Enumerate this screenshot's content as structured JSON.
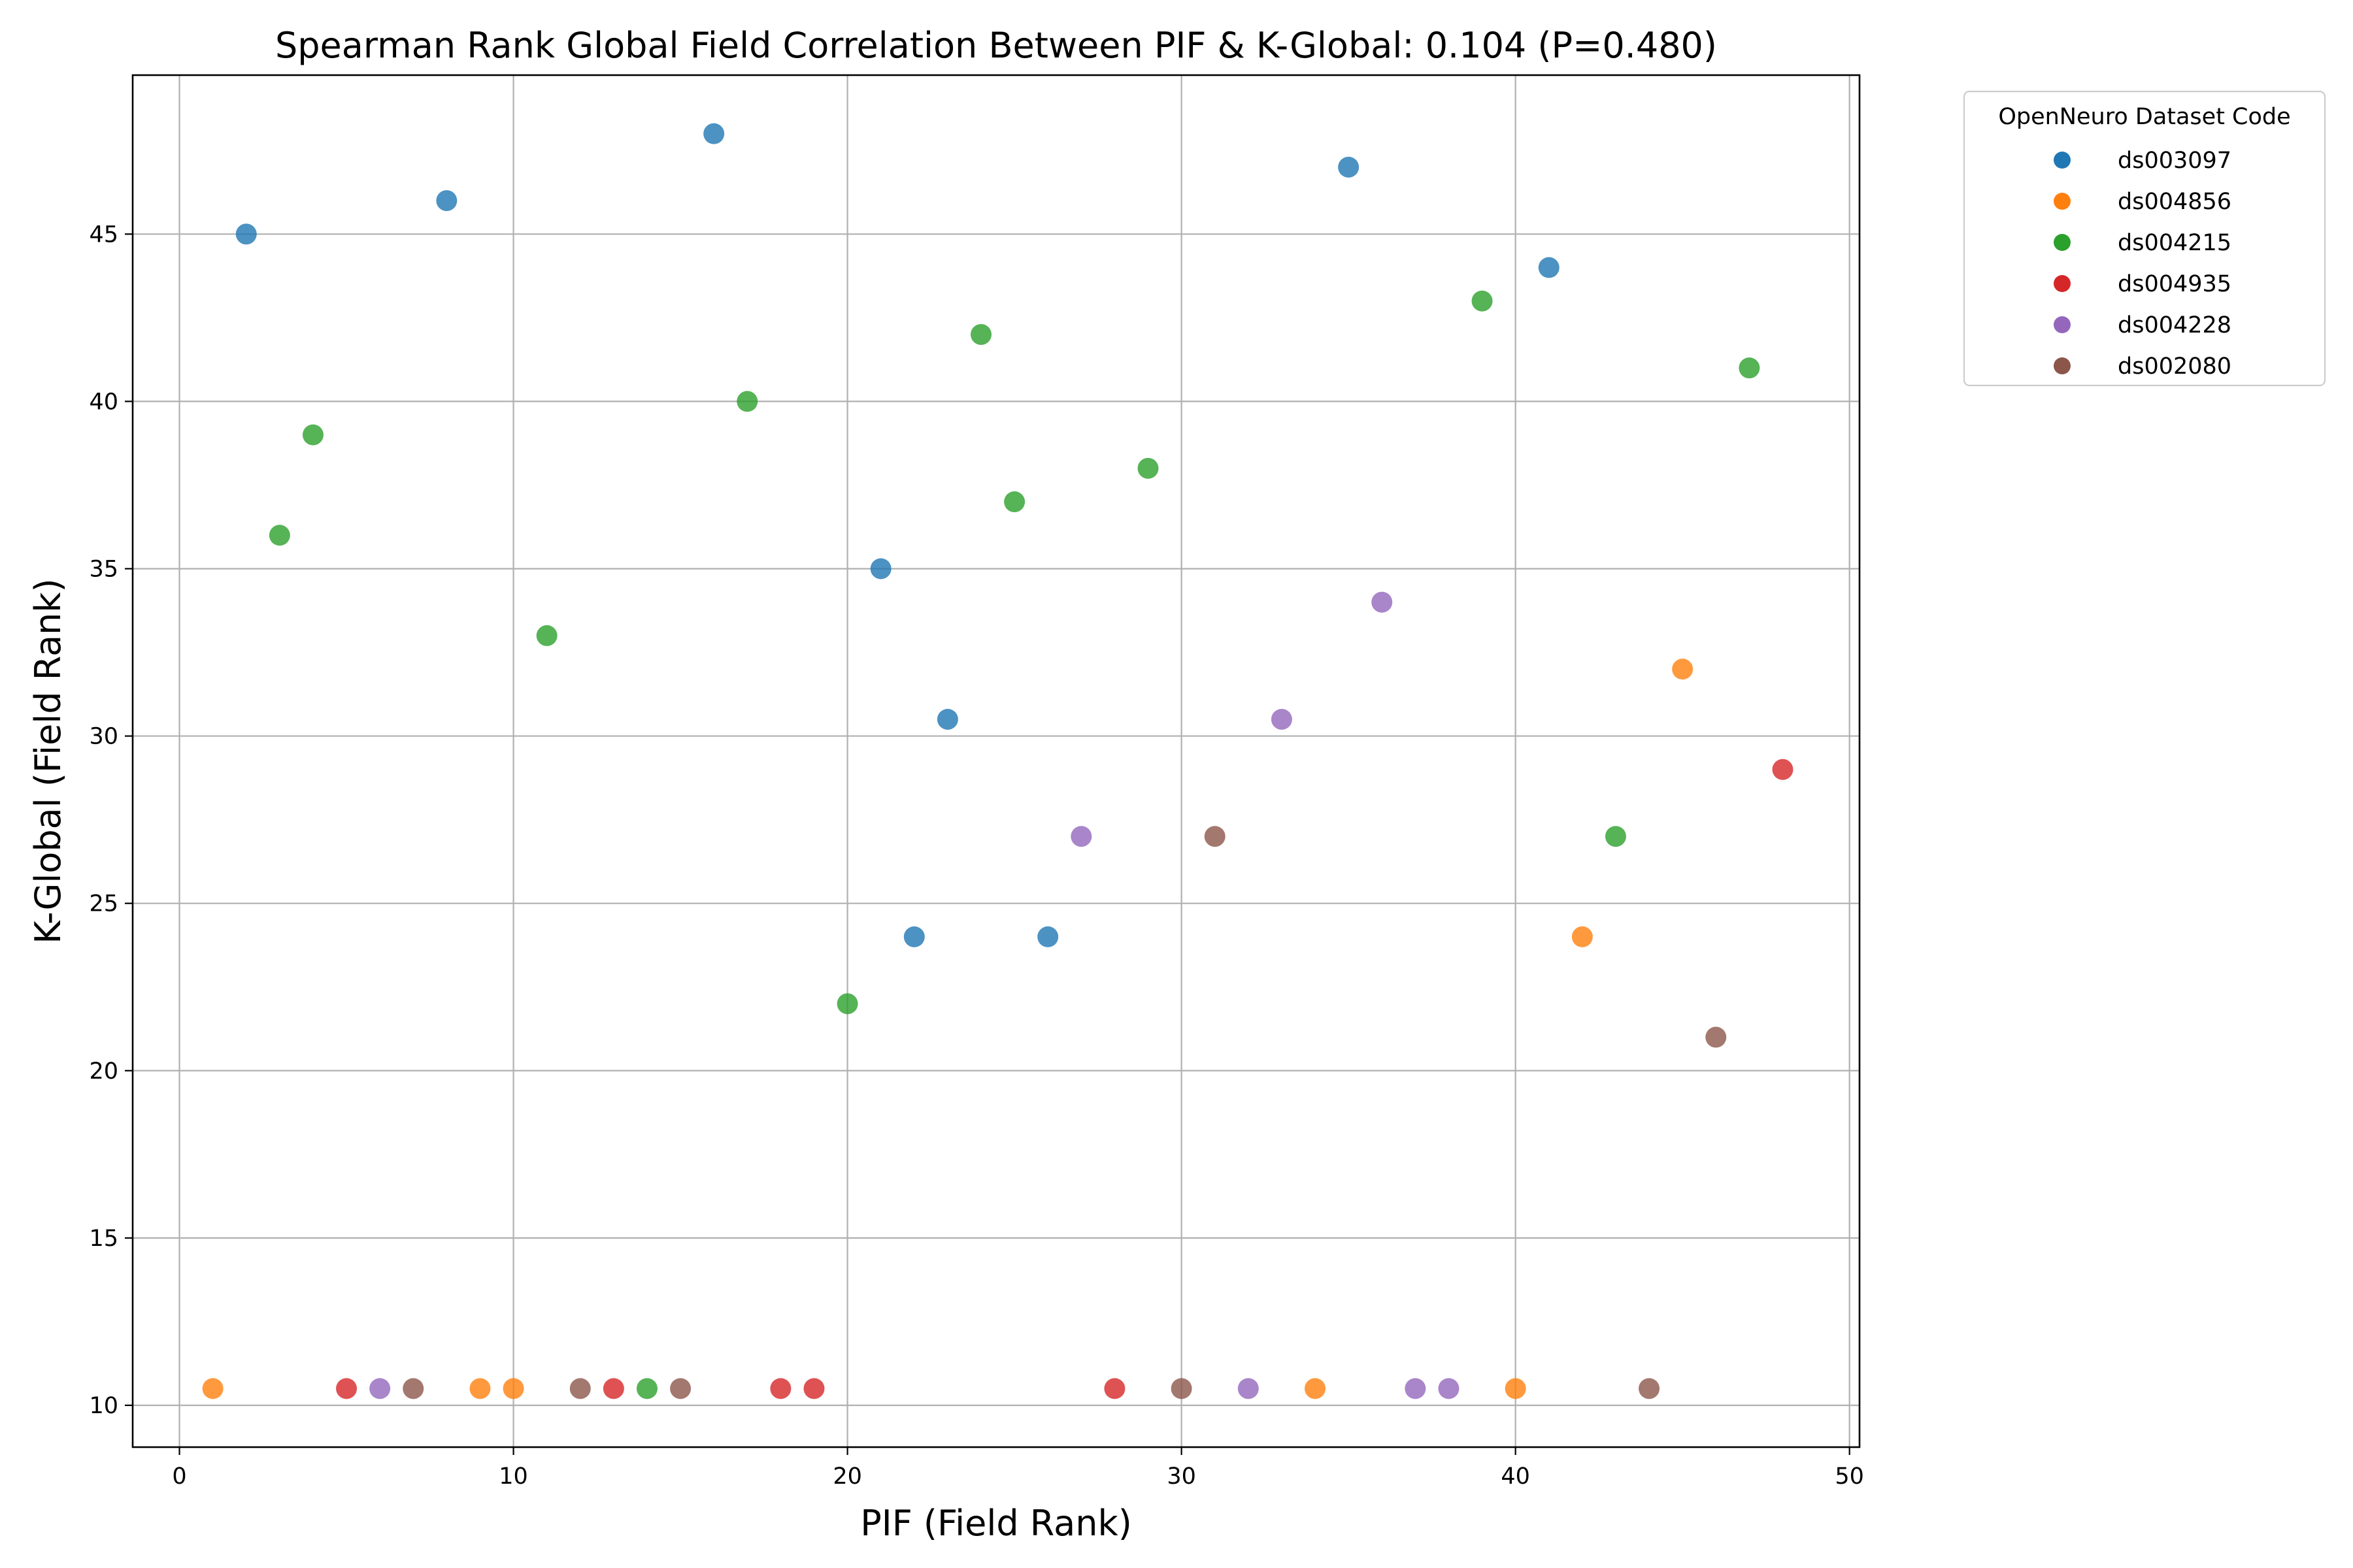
{
  "chart_data": {
    "type": "scatter",
    "title": "Spearman Rank Global Field Correlation Between PIF & K-Global: 0.104 (P=0.480)",
    "xlabel": "PIF (Field Rank)",
    "ylabel": "K-Global (Field Rank)",
    "xlim": [
      -1.4,
      50.3
    ],
    "ylim": [
      8.75,
      49.75
    ],
    "xticks": [
      0,
      10,
      20,
      30,
      40,
      50
    ],
    "yticks": [
      10,
      15,
      20,
      25,
      30,
      35,
      40,
      45
    ],
    "grid": true,
    "legend": {
      "title": "OpenNeuro Dataset Code",
      "placement": "outside-top-right"
    },
    "series": [
      {
        "name": "ds003097",
        "color": "#1f77b4",
        "points": [
          [
            2,
            45
          ],
          [
            8,
            46
          ],
          [
            16,
            48
          ],
          [
            21,
            35
          ],
          [
            22,
            24
          ],
          [
            23,
            30.5
          ],
          [
            26,
            24
          ],
          [
            35,
            47
          ],
          [
            41,
            44
          ]
        ]
      },
      {
        "name": "ds004856",
        "color": "#ff7f0e",
        "points": [
          [
            1,
            10.5
          ],
          [
            9,
            10.5
          ],
          [
            10,
            10.5
          ],
          [
            34,
            10.5
          ],
          [
            40,
            10.5
          ],
          [
            42,
            24
          ],
          [
            45,
            32
          ]
        ]
      },
      {
        "name": "ds004215",
        "color": "#2ca02c",
        "points": [
          [
            3,
            36
          ],
          [
            4,
            39
          ],
          [
            11,
            33
          ],
          [
            14,
            10.5
          ],
          [
            17,
            40
          ],
          [
            20,
            22
          ],
          [
            24,
            42
          ],
          [
            25,
            37
          ],
          [
            29,
            38
          ],
          [
            39,
            43
          ],
          [
            43,
            27
          ],
          [
            47,
            41
          ]
        ]
      },
      {
        "name": "ds004935",
        "color": "#d62728",
        "points": [
          [
            5,
            10.5
          ],
          [
            13,
            10.5
          ],
          [
            18,
            10.5
          ],
          [
            19,
            10.5
          ],
          [
            28,
            10.5
          ],
          [
            48,
            29
          ]
        ]
      },
      {
        "name": "ds004228",
        "color": "#9467bd",
        "points": [
          [
            6,
            10.5
          ],
          [
            27,
            27
          ],
          [
            32,
            10.5
          ],
          [
            33,
            30.5
          ],
          [
            36,
            34
          ],
          [
            37,
            10.5
          ],
          [
            38,
            10.5
          ]
        ]
      },
      {
        "name": "ds002080",
        "color": "#8c564b",
        "points": [
          [
            7,
            10.5
          ],
          [
            12,
            10.5
          ],
          [
            15,
            10.5
          ],
          [
            30,
            10.5
          ],
          [
            31,
            27
          ],
          [
            44,
            10.5
          ],
          [
            46,
            21
          ]
        ]
      }
    ]
  }
}
